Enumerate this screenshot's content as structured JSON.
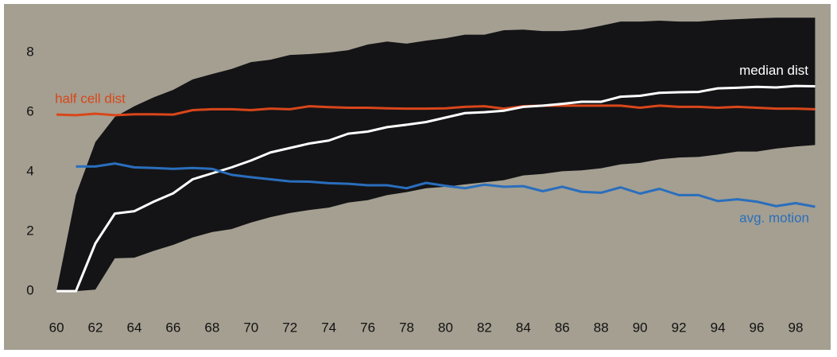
{
  "chart_data": {
    "type": "line",
    "x": [
      60,
      61,
      62,
      63,
      64,
      65,
      66,
      67,
      68,
      69,
      70,
      71,
      72,
      73,
      74,
      75,
      76,
      77,
      78,
      79,
      80,
      81,
      82,
      83,
      84,
      85,
      86,
      87,
      88,
      89,
      90,
      91,
      92,
      93,
      94,
      95,
      96,
      97,
      98,
      99
    ],
    "band": {
      "color": "#141416",
      "upper": [
        0,
        3.23,
        5.0,
        5.84,
        6.2,
        6.5,
        6.75,
        7.1,
        7.28,
        7.45,
        7.68,
        7.76,
        7.92,
        7.95,
        8.0,
        8.08,
        8.27,
        8.37,
        8.3,
        8.4,
        8.48,
        8.6,
        8.6,
        8.75,
        8.77,
        8.72,
        8.72,
        8.77,
        8.9,
        9.04,
        9.04,
        9.07,
        9.04,
        9.04,
        9.09,
        9.12,
        9.15,
        9.17,
        9.17,
        9.17
      ],
      "lower": [
        0,
        0,
        0.05,
        1.1,
        1.12,
        1.35,
        1.55,
        1.8,
        1.98,
        2.08,
        2.3,
        2.48,
        2.62,
        2.72,
        2.8,
        2.97,
        3.05,
        3.22,
        3.32,
        3.45,
        3.5,
        3.58,
        3.65,
        3.72,
        3.88,
        3.93,
        4.02,
        4.05,
        4.12,
        4.25,
        4.3,
        4.42,
        4.48,
        4.5,
        4.58,
        4.68,
        4.68,
        4.78,
        4.85,
        4.9
      ]
    },
    "series": [
      {
        "name": "half cell dist",
        "color": "#d9461a",
        "values": [
          5.92,
          5.9,
          5.95,
          5.9,
          5.93,
          5.93,
          5.92,
          6.07,
          6.1,
          6.1,
          6.07,
          6.12,
          6.1,
          6.2,
          6.17,
          6.15,
          6.15,
          6.13,
          6.12,
          6.12,
          6.13,
          6.18,
          6.2,
          6.12,
          6.2,
          6.22,
          6.22,
          6.22,
          6.22,
          6.22,
          6.15,
          6.22,
          6.18,
          6.18,
          6.15,
          6.18,
          6.15,
          6.12,
          6.12,
          6.1
        ]
      },
      {
        "name": "median dist",
        "color": "#ffffff",
        "values": [
          0,
          0,
          1.6,
          2.6,
          2.68,
          3.0,
          3.28,
          3.75,
          3.95,
          4.15,
          4.38,
          4.65,
          4.8,
          4.95,
          5.05,
          5.28,
          5.35,
          5.5,
          5.58,
          5.67,
          5.82,
          5.97,
          6.0,
          6.05,
          6.18,
          6.22,
          6.28,
          6.35,
          6.35,
          6.52,
          6.55,
          6.65,
          6.67,
          6.68,
          6.8,
          6.82,
          6.85,
          6.83,
          6.88,
          6.87
        ]
      },
      {
        "name": "avg. motion",
        "color": "#2a6ebd",
        "values": [
          null,
          4.18,
          4.18,
          4.28,
          4.15,
          4.13,
          4.1,
          4.13,
          4.1,
          3.9,
          3.82,
          3.75,
          3.68,
          3.67,
          3.62,
          3.6,
          3.55,
          3.55,
          3.45,
          3.63,
          3.53,
          3.45,
          3.57,
          3.5,
          3.52,
          3.35,
          3.5,
          3.33,
          3.3,
          3.48,
          3.27,
          3.43,
          3.22,
          3.22,
          3.02,
          3.08,
          3.0,
          2.85,
          2.95,
          2.83
        ]
      }
    ],
    "xlim": [
      57.3,
      99.8
    ],
    "ylim": [
      -1.97,
      9.63
    ],
    "xticks": [
      60,
      62,
      64,
      66,
      68,
      70,
      72,
      74,
      76,
      78,
      80,
      82,
      84,
      86,
      88,
      90,
      92,
      94,
      96,
      98
    ],
    "yticks": [
      0,
      2,
      4,
      6,
      8
    ],
    "background": "#a49f91"
  }
}
